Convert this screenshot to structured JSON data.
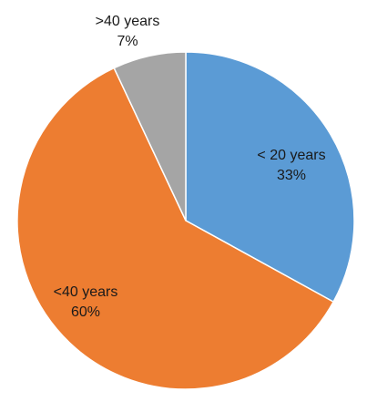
{
  "chart_data": {
    "type": "pie",
    "title": "",
    "start_angle_deg": 0,
    "direction": "clockwise",
    "slices": [
      {
        "name": "< 20 years",
        "value": 33,
        "label": "33%",
        "color": "#5b9bd5",
        "label_position": "inside"
      },
      {
        "name": "<40 years",
        "value": 60,
        "label": "60%",
        "color": "#ed7d31",
        "label_position": "inside"
      },
      {
        "name": ">40 years",
        "value": 7,
        "label": "7%",
        "color": "#a5a5a5",
        "label_position": "outside"
      }
    ],
    "legend": "none"
  }
}
